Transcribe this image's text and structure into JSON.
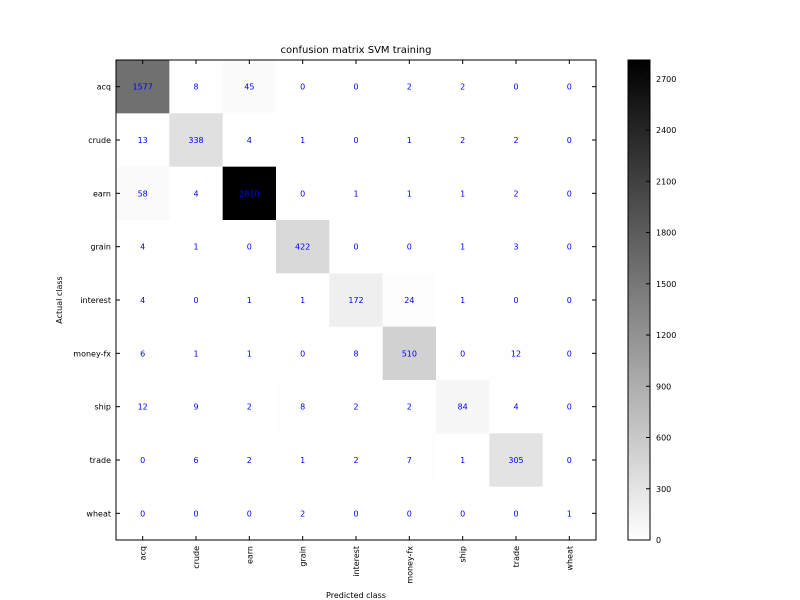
{
  "chart_data": {
    "type": "heatmap",
    "title": "confusion matrix SVM training",
    "xlabel": "Predicted class",
    "ylabel": "Actual class",
    "row_labels": [
      "acq",
      "crude",
      "earn",
      "grain",
      "interest",
      "money-fx",
      "ship",
      "trade",
      "wheat"
    ],
    "col_labels": [
      "acq",
      "crude",
      "earn",
      "grain",
      "interest",
      "money-fx",
      "ship",
      "trade",
      "wheat"
    ],
    "values": [
      [
        1577,
        8,
        45,
        0,
        0,
        2,
        2,
        0,
        0
      ],
      [
        13,
        338,
        4,
        1,
        0,
        1,
        2,
        2,
        0
      ],
      [
        58,
        4,
        2810,
        0,
        1,
        1,
        1,
        2,
        0
      ],
      [
        4,
        1,
        0,
        422,
        0,
        0,
        1,
        3,
        0
      ],
      [
        4,
        0,
        1,
        1,
        172,
        24,
        1,
        0,
        0
      ],
      [
        6,
        1,
        1,
        0,
        8,
        510,
        0,
        12,
        0
      ],
      [
        12,
        9,
        2,
        8,
        2,
        2,
        84,
        4,
        0
      ],
      [
        0,
        6,
        2,
        1,
        2,
        7,
        1,
        305,
        0
      ],
      [
        0,
        0,
        0,
        2,
        0,
        0,
        0,
        0,
        1
      ]
    ],
    "colormap": "greys",
    "cell_text_color": "#0000ff",
    "colorbar": {
      "range": [
        0,
        2810
      ],
      "ticks": [
        0,
        300,
        600,
        900,
        1200,
        1500,
        1800,
        2100,
        2400,
        2700
      ]
    },
    "grid": false
  }
}
